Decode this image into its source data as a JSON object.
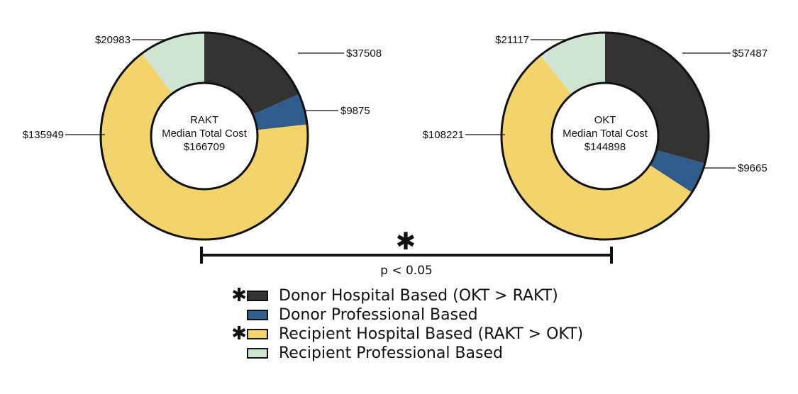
{
  "chart_data": [
    {
      "type": "pie",
      "variant": "donut",
      "group": "RAKT",
      "center_title": "RAKT",
      "center_subtitle": "Median Total Cost",
      "center_value": "$166709",
      "categories": [
        "Donor Hospital Based",
        "Donor Professional Based",
        "Recipient Hospital Based",
        "Recipient Professional Based"
      ],
      "values": [
        37508,
        9875,
        135949,
        20983
      ],
      "value_labels": [
        "$37508",
        "$9875",
        "$135949",
        "$20983"
      ]
    },
    {
      "type": "pie",
      "variant": "donut",
      "group": "OKT",
      "center_title": "OKT",
      "center_subtitle": "Median Total Cost",
      "center_value": "$144898",
      "categories": [
        "Donor Hospital Based",
        "Donor Professional Based",
        "Recipient Hospital Based",
        "Recipient Professional Based"
      ],
      "values": [
        57487,
        9665,
        108221,
        21117
      ],
      "value_labels": [
        "$57487",
        "$9665",
        "$108221",
        "$21117"
      ]
    }
  ],
  "colors": {
    "donor_hospital": "#333333",
    "donor_professional": "#2f5c8a",
    "recipient_hospital": "#f3d36b",
    "recipient_professional": "#cfe4d2"
  },
  "significance": {
    "marker": "✱",
    "label": "p < 0.05"
  },
  "legend": [
    {
      "marker": "✱",
      "label": "Donor Hospital Based (OKT > RAKT)",
      "color": "#333333"
    },
    {
      "marker": "",
      "label": "Donor Professional Based",
      "color": "#2f5c8a"
    },
    {
      "marker": "✱",
      "label": "Recipient Hospital Based (RAKT > OKT)",
      "color": "#f3d36b"
    },
    {
      "marker": "",
      "label": "Recipient Professional Based",
      "color": "#cfe4d2"
    }
  ]
}
